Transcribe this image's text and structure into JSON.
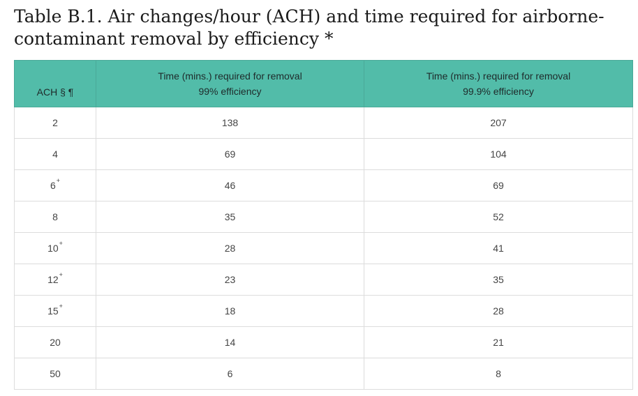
{
  "title": "Table B.1. Air changes/hour (ACH) and time required for airborne-contaminant removal by efficiency *",
  "header": {
    "col1": "ACH § ¶",
    "col2_line1": "Time (mins.) required for removal",
    "col2_line2": "99% efficiency",
    "col3_line1": "Time (mins.) required for removal",
    "col3_line2": "99.9% efficiency"
  },
  "rows": [
    {
      "ach": "2",
      "mark": "",
      "t99": "138",
      "t999": "207"
    },
    {
      "ach": "4",
      "mark": "",
      "t99": "69",
      "t999": "104"
    },
    {
      "ach": "6",
      "mark": "+",
      "t99": "46",
      "t999": "69"
    },
    {
      "ach": "8",
      "mark": "",
      "t99": "35",
      "t999": "52"
    },
    {
      "ach": "10",
      "mark": "+",
      "t99": "28",
      "t999": "41"
    },
    {
      "ach": "12",
      "mark": "+",
      "t99": "23",
      "t999": "35"
    },
    {
      "ach": "15",
      "mark": "+",
      "t99": "18",
      "t999": "28"
    },
    {
      "ach": "20",
      "mark": "",
      "t99": "14",
      "t999": "21"
    },
    {
      "ach": "50",
      "mark": "",
      "t99": "6",
      "t999": "8"
    }
  ],
  "colors": {
    "header_bg": "#52bca9",
    "grid": "#dcdcdc"
  }
}
